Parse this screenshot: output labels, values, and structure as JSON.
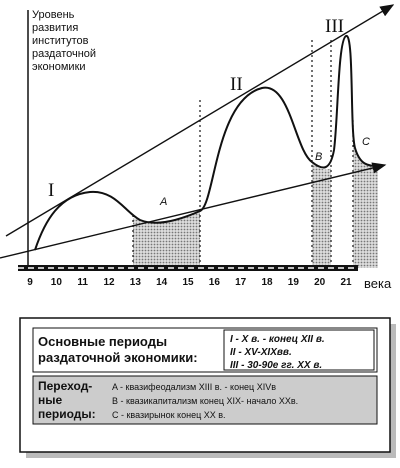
{
  "y_axis_label": [
    "Уровень",
    "развития",
    "институтов",
    "раздаточной",
    "экономики"
  ],
  "x_axis": {
    "ticks": [
      "9",
      "10",
      "11",
      "12",
      "13",
      "14",
      "15",
      "16",
      "17",
      "18",
      "19",
      "20",
      "21"
    ],
    "label": "века"
  },
  "curve_labels": {
    "I": "I",
    "II": "II",
    "III": "III",
    "A": "A",
    "B": "B",
    "C": "C"
  },
  "legend": {
    "main_title": [
      "Основные периоды",
      "раздаточной экономики:"
    ],
    "main_periods": [
      "I  - X в. - конец XII в.",
      "II  - XV-XIXвв.",
      "III  - 30-90е гг.  XX в."
    ],
    "transition_title": [
      "Переход-",
      "ные",
      "периоды:"
    ],
    "transition_periods": [
      "A - квазифеодализм  XIII в. - конец XIVв",
      "B - квазикапитализм конец XIX- начало XXв.",
      "C - квазирынок  конец XX в."
    ]
  }
}
